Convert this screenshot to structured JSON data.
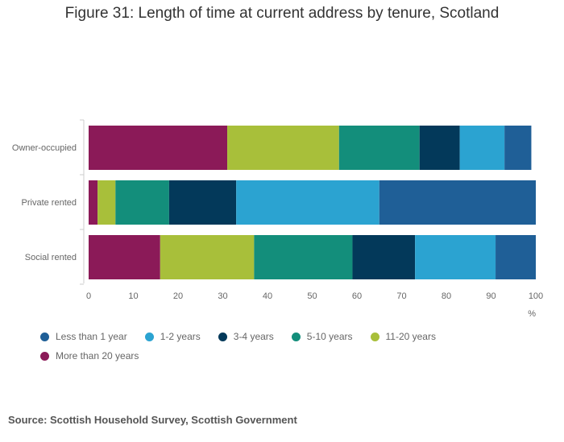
{
  "title": "Figure 31: Length of time at current address by tenure, Scotland",
  "source": "Source: Scottish Household Survey, Scottish Government",
  "chart_data": {
    "type": "bar",
    "orientation": "horizontal",
    "stacked": true,
    "categories": [
      "Owner-occupied",
      "Private rented",
      "Social rented"
    ],
    "series": [
      {
        "name": "More than 20 years",
        "color": "#8b1a58",
        "values": [
          31,
          2,
          16
        ]
      },
      {
        "name": "11-20 years",
        "color": "#a8bf3a",
        "values": [
          25,
          4,
          21
        ]
      },
      {
        "name": "5-10 years",
        "color": "#138e7b",
        "values": [
          18,
          12,
          22
        ]
      },
      {
        "name": "3-4 years",
        "color": "#03395a",
        "values": [
          9,
          15,
          14
        ]
      },
      {
        "name": "1-2 years",
        "color": "#2ba3d1",
        "values": [
          10,
          32,
          18
        ]
      },
      {
        "name": "Less than 1 year",
        "color": "#1f5f97",
        "values": [
          6,
          35,
          9
        ]
      }
    ],
    "legend_order": [
      "Less than 1 year",
      "1-2 years",
      "3-4 years",
      "5-10 years",
      "11-20 years",
      "More than 20 years"
    ],
    "xlabel": "%",
    "xlim": [
      0,
      100
    ],
    "xticks": [
      0,
      10,
      20,
      30,
      40,
      50,
      60,
      70,
      80,
      90,
      100
    ],
    "grid": false,
    "legend_position": "bottom"
  }
}
